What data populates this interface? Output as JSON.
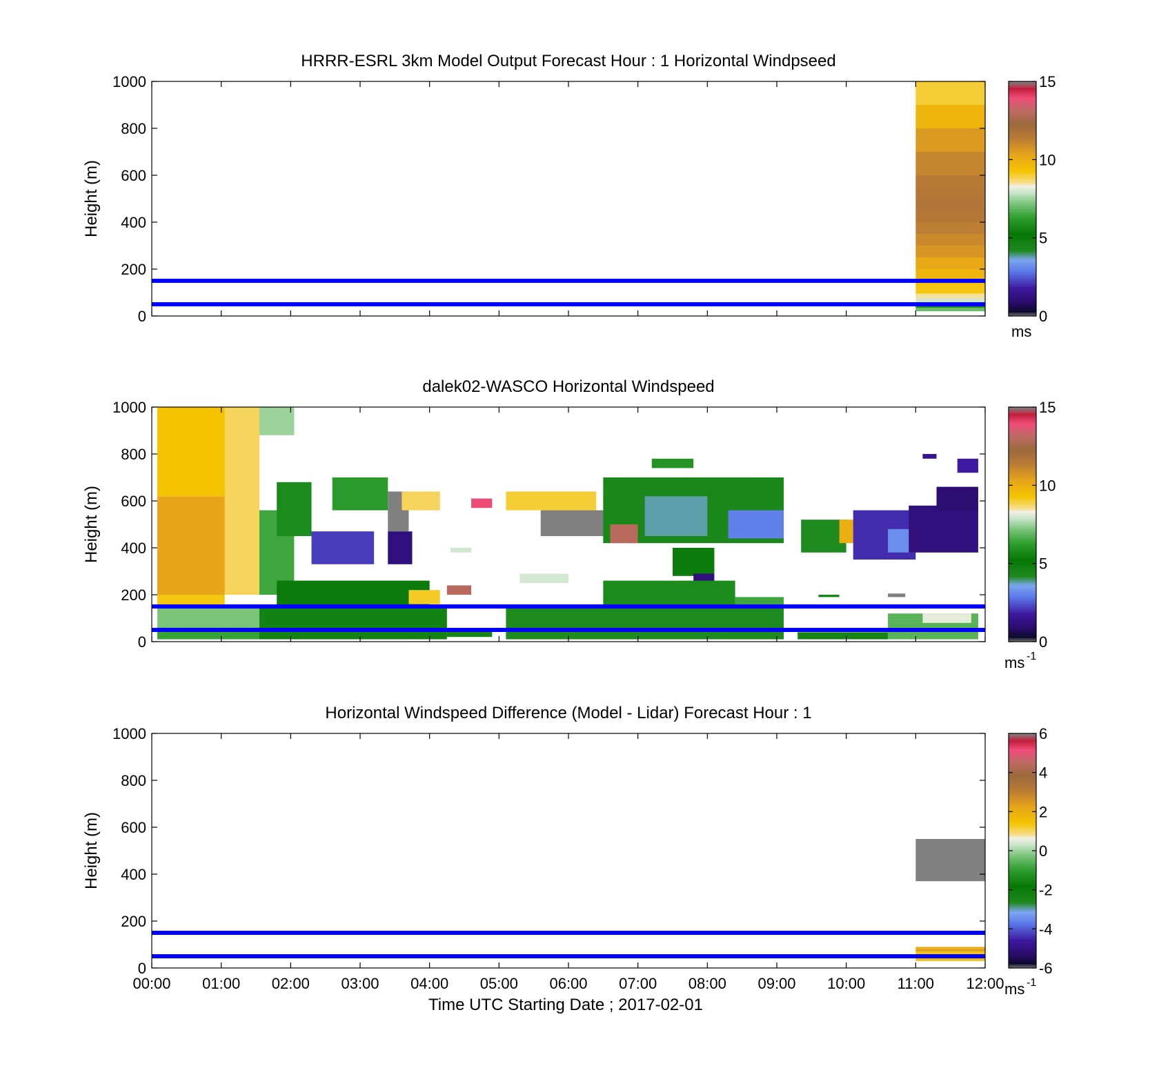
{
  "figure": {
    "xlabel": "Time UTC  Starting Date ; 2017-02-01",
    "xticks": [
      "00:00",
      "01:00",
      "02:00",
      "03:00",
      "04:00",
      "05:00",
      "06:00",
      "07:00",
      "08:00",
      "09:00",
      "10:00",
      "11:00",
      "12:00"
    ]
  },
  "colors": {
    "reference_line": "#0000ff",
    "axes": "#000000",
    "missing": "#808080"
  },
  "chart_data": [
    {
      "type": "heatmap",
      "title": "HRRR-ESRL 3km Model Output   Forecast Hour : 1 Horizontal Windpseed",
      "ylabel": "Height (m)",
      "xlim": [
        0,
        12
      ],
      "ylim": [
        0,
        1000
      ],
      "yticks": [
        "0",
        "200",
        "400",
        "600",
        "800",
        "1000"
      ],
      "grid": false,
      "colorbar": {
        "range": [
          0,
          15
        ],
        "ticks": [
          "0",
          "5",
          "10",
          "15"
        ],
        "unit": "ms"
      },
      "reference_lines_m": [
        50,
        150
      ],
      "cells": [
        {
          "t0": 11,
          "t1": 12,
          "h0": 20,
          "h1": 35,
          "v": 7
        },
        {
          "t0": 11,
          "t1": 12,
          "h0": 35,
          "h1": 55,
          "v": 5.8
        },
        {
          "t0": 11,
          "t1": 12,
          "h0": 55,
          "h1": 75,
          "v": 8
        },
        {
          "t0": 11,
          "t1": 12,
          "h0": 75,
          "h1": 95,
          "v": 8.5
        },
        {
          "t0": 11,
          "t1": 12,
          "h0": 95,
          "h1": 130,
          "v": 9.2
        },
        {
          "t0": 11,
          "t1": 12,
          "h0": 130,
          "h1": 160,
          "v": 9.5
        },
        {
          "t0": 11,
          "t1": 12,
          "h0": 160,
          "h1": 200,
          "v": 9.8
        },
        {
          "t0": 11,
          "t1": 12,
          "h0": 200,
          "h1": 250,
          "v": 10.2
        },
        {
          "t0": 11,
          "t1": 12,
          "h0": 250,
          "h1": 300,
          "v": 10.7
        },
        {
          "t0": 11,
          "t1": 12,
          "h0": 300,
          "h1": 350,
          "v": 11
        },
        {
          "t0": 11,
          "t1": 12,
          "h0": 350,
          "h1": 400,
          "v": 11.3
        },
        {
          "t0": 11,
          "t1": 12,
          "h0": 400,
          "h1": 450,
          "v": 11.5
        },
        {
          "t0": 11,
          "t1": 12,
          "h0": 450,
          "h1": 500,
          "v": 11.6
        },
        {
          "t0": 11,
          "t1": 12,
          "h0": 500,
          "h1": 550,
          "v": 11.5
        },
        {
          "t0": 11,
          "t1": 12,
          "h0": 550,
          "h1": 600,
          "v": 11.4
        },
        {
          "t0": 11,
          "t1": 12,
          "h0": 600,
          "h1": 700,
          "v": 11.1
        },
        {
          "t0": 11,
          "t1": 12,
          "h0": 700,
          "h1": 800,
          "v": 10.6
        },
        {
          "t0": 11,
          "t1": 12,
          "h0": 800,
          "h1": 900,
          "v": 9.8
        },
        {
          "t0": 11,
          "t1": 12,
          "h0": 900,
          "h1": 1000,
          "v": 9
        }
      ]
    },
    {
      "type": "heatmap",
      "title": "dalek02-WASCO  Horizontal Windspeed",
      "ylabel": "Height (m)",
      "xlim": [
        0,
        12
      ],
      "ylim": [
        0,
        1000
      ],
      "yticks": [
        "0",
        "200",
        "400",
        "600",
        "800",
        "1000"
      ],
      "grid": false,
      "colorbar": {
        "range": [
          0,
          15
        ],
        "ticks": [
          "0",
          "5",
          "10",
          "15"
        ],
        "unit": "ms",
        "unit_exp": "-1"
      },
      "reference_lines_m": [
        50,
        150
      ],
      "cells": [
        {
          "t0": 0.08,
          "t1": 1.55,
          "h0": 200,
          "h1": 620,
          "v": 10.3
        },
        {
          "t0": 0.08,
          "t1": 1.55,
          "h0": 620,
          "h1": 1000,
          "v": 9.3
        },
        {
          "t0": 1.05,
          "t1": 1.55,
          "h0": 200,
          "h1": 1000,
          "v": 8.8
        },
        {
          "t0": 0.08,
          "t1": 1.05,
          "h0": 150,
          "h1": 200,
          "v": 9.2
        },
        {
          "t0": 0.08,
          "t1": 1.55,
          "h0": 60,
          "h1": 150,
          "v": 7.2
        },
        {
          "t0": 0.08,
          "t1": 1.55,
          "h0": 10,
          "h1": 60,
          "v": 6.4
        },
        {
          "t0": 1.55,
          "t1": 2.05,
          "h0": 880,
          "h1": 1000,
          "v": 7.5
        },
        {
          "t0": 1.55,
          "t1": 2.05,
          "h0": 200,
          "h1": 560,
          "v": 6.5
        },
        {
          "t0": 1.8,
          "t1": 2.3,
          "h0": 450,
          "h1": 680,
          "v": 5.8
        },
        {
          "t0": 1.55,
          "t1": 4.25,
          "h0": 10,
          "h1": 150,
          "v": 4.7
        },
        {
          "t0": 1.8,
          "t1": 4.0,
          "h0": 150,
          "h1": 260,
          "v": 5.1
        },
        {
          "t0": 2.3,
          "t1": 3.2,
          "h0": 330,
          "h1": 470,
          "v": 2.2
        },
        {
          "t0": 2.6,
          "t1": 3.4,
          "h0": 560,
          "h1": 700,
          "v": 6.2
        },
        {
          "t0": 3.4,
          "t1": 3.7,
          "h0": 470,
          "h1": 640,
          "v": 0
        },
        {
          "t0": 3.4,
          "t1": 3.75,
          "h0": 330,
          "h1": 470,
          "v": 1.2
        },
        {
          "t0": 3.6,
          "t1": 4.15,
          "h0": 560,
          "h1": 640,
          "v": 8.8
        },
        {
          "t0": 3.7,
          "t1": 4.15,
          "h0": 160,
          "h1": 220,
          "v": 9.1
        },
        {
          "t0": 4.25,
          "t1": 4.6,
          "h0": 200,
          "h1": 240,
          "v": 13
        },
        {
          "t0": 4.3,
          "t1": 4.6,
          "h0": 380,
          "h1": 400,
          "v": 8
        },
        {
          "t0": 4.6,
          "t1": 4.9,
          "h0": 570,
          "h1": 610,
          "v": 14
        },
        {
          "t0": 4.25,
          "t1": 4.9,
          "h0": 20,
          "h1": 50,
          "v": 4.5
        },
        {
          "t0": 5.1,
          "t1": 6.4,
          "h0": 560,
          "h1": 640,
          "v": 9
        },
        {
          "t0": 5.6,
          "t1": 6.6,
          "h0": 450,
          "h1": 560,
          "v": 0
        },
        {
          "t0": 5.3,
          "t1": 6.0,
          "h0": 250,
          "h1": 290,
          "v": 8
        },
        {
          "t0": 5.1,
          "t1": 9.1,
          "h0": 10,
          "h1": 150,
          "v": 4.2
        },
        {
          "t0": 6.5,
          "t1": 9.1,
          "h0": 420,
          "h1": 700,
          "v": 4.4
        },
        {
          "t0": 7.1,
          "t1": 8.0,
          "h0": 450,
          "h1": 620,
          "v": 3.8
        },
        {
          "t0": 8.3,
          "t1": 9.1,
          "h0": 440,
          "h1": 560,
          "v": 3
        },
        {
          "t0": 6.6,
          "t1": 7.0,
          "h0": 420,
          "h1": 500,
          "v": 13
        },
        {
          "t0": 7.5,
          "t1": 8.1,
          "h0": 280,
          "h1": 400,
          "v": 5
        },
        {
          "t0": 7.8,
          "t1": 8.1,
          "h0": 250,
          "h1": 290,
          "v": 1.2
        },
        {
          "t0": 6.5,
          "t1": 8.4,
          "h0": 150,
          "h1": 260,
          "v": 5.8
        },
        {
          "t0": 8.4,
          "t1": 9.1,
          "h0": 150,
          "h1": 190,
          "v": 6.5
        },
        {
          "t0": 7.2,
          "t1": 7.8,
          "h0": 740,
          "h1": 780,
          "v": 6
        },
        {
          "t0": 9.35,
          "t1": 10.0,
          "h0": 380,
          "h1": 520,
          "v": 4.2
        },
        {
          "t0": 9.9,
          "t1": 10.4,
          "h0": 420,
          "h1": 520,
          "v": 10
        },
        {
          "t0": 10.1,
          "t1": 11.0,
          "h0": 350,
          "h1": 560,
          "v": 2.0
        },
        {
          "t0": 10.6,
          "t1": 11.0,
          "h0": 380,
          "h1": 480,
          "v": 3.2
        },
        {
          "t0": 10.9,
          "t1": 11.9,
          "h0": 380,
          "h1": 580,
          "v": 1.2
        },
        {
          "t0": 11.3,
          "t1": 11.9,
          "h0": 560,
          "h1": 660,
          "v": 1.0
        },
        {
          "t0": 11.6,
          "t1": 11.9,
          "h0": 720,
          "h1": 780,
          "v": 1.8
        },
        {
          "t0": 11.1,
          "t1": 11.3,
          "h0": 780,
          "h1": 800,
          "v": 1.5
        },
        {
          "t0": 10.6,
          "t1": 11.9,
          "h0": 10,
          "h1": 120,
          "v": 6.8
        },
        {
          "t0": 11.1,
          "t1": 11.8,
          "h0": 80,
          "h1": 120,
          "v": 8.2
        },
        {
          "t0": 9.3,
          "t1": 10.6,
          "h0": 10,
          "h1": 40,
          "v": 4.6
        },
        {
          "t0": 9.6,
          "t1": 9.9,
          "h0": 190,
          "h1": 200,
          "v": 4.5
        },
        {
          "t0": 10.6,
          "t1": 10.85,
          "h0": 190,
          "h1": 205,
          "v": 0
        }
      ]
    },
    {
      "type": "heatmap",
      "title": "Horizontal Windspeed Difference (Model - Lidar) Forecast Hour : 1",
      "ylabel": "Height (m)",
      "xlim": [
        0,
        12
      ],
      "ylim": [
        0,
        1000
      ],
      "yticks": [
        "0",
        "200",
        "400",
        "600",
        "800",
        "1000"
      ],
      "grid": false,
      "colorbar": {
        "range": [
          -6,
          6
        ],
        "ticks": [
          "-6",
          "-4",
          "-2",
          "0",
          "2",
          "4",
          "6"
        ],
        "unit": "ms",
        "unit_exp": "-1"
      },
      "reference_lines_m": [
        50,
        150
      ],
      "cells": [
        {
          "t0": 11,
          "t1": 12,
          "h0": 370,
          "h1": 550,
          "missing": true
        },
        {
          "t0": 11,
          "t1": 12,
          "h0": 55,
          "h1": 70,
          "v": 1.4
        },
        {
          "t0": 11,
          "t1": 12,
          "h0": 70,
          "h1": 80,
          "v": 2.4
        },
        {
          "t0": 11,
          "t1": 12,
          "h0": 80,
          "h1": 90,
          "v": 2.0
        },
        {
          "t0": 11,
          "t1": 12,
          "h0": 30,
          "h1": 45,
          "v": 1.6
        }
      ]
    }
  ]
}
